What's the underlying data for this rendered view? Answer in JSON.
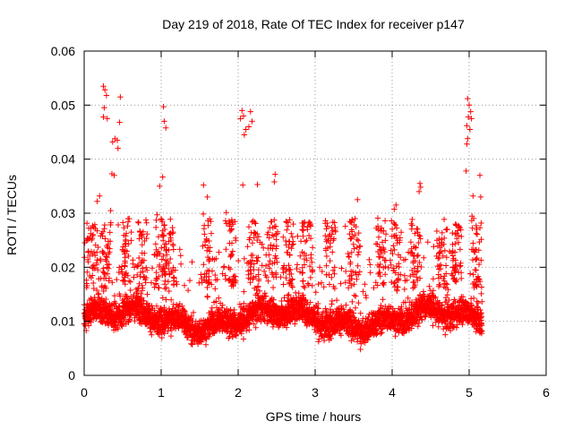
{
  "chart_data": {
    "type": "scatter",
    "title": "Day 219 of 2018, Rate Of TEC Index for receiver p147",
    "xlabel": "GPS time / hours",
    "ylabel": "ROTI / TECUs",
    "xlim": [
      0,
      6
    ],
    "ylim": [
      0,
      0.06
    ],
    "grid": true,
    "marker": "+",
    "color": "#ff0000",
    "xticks": [
      0,
      1,
      2,
      3,
      4,
      5,
      6
    ],
    "xtick_labels": [
      "0",
      "1",
      "2",
      "3",
      "4",
      "5",
      "6"
    ],
    "yticks": [
      0,
      0.01,
      0.02,
      0.03,
      0.04,
      0.05,
      0.06
    ],
    "ytick_labels": [
      "0",
      "0.01",
      "0.02",
      "0.03",
      "0.04",
      "0.05",
      "0.06"
    ],
    "series": [
      {
        "name": "ROTI",
        "x_range": [
          0.0,
          5.17
        ],
        "baseline_y_range": [
          0.004,
          0.018
        ],
        "notable_points": [
          {
            "x": 0.25,
            "y": 0.0535
          },
          {
            "x": 0.27,
            "y": 0.0528
          },
          {
            "x": 0.29,
            "y": 0.0518
          },
          {
            "x": 0.26,
            "y": 0.0495
          },
          {
            "x": 0.25,
            "y": 0.0478
          },
          {
            "x": 0.3,
            "y": 0.0475
          },
          {
            "x": 0.47,
            "y": 0.0515
          },
          {
            "x": 0.46,
            "y": 0.0468
          },
          {
            "x": 0.4,
            "y": 0.0438
          },
          {
            "x": 0.37,
            "y": 0.0432
          },
          {
            "x": 0.43,
            "y": 0.0435
          },
          {
            "x": 0.44,
            "y": 0.042
          },
          {
            "x": 0.36,
            "y": 0.0373
          },
          {
            "x": 0.39,
            "y": 0.037
          },
          {
            "x": 1.03,
            "y": 0.0497
          },
          {
            "x": 1.04,
            "y": 0.047
          },
          {
            "x": 1.06,
            "y": 0.0458
          },
          {
            "x": 1.02,
            "y": 0.0367
          },
          {
            "x": 0.98,
            "y": 0.035
          },
          {
            "x": 2.05,
            "y": 0.049
          },
          {
            "x": 2.07,
            "y": 0.048
          },
          {
            "x": 2.03,
            "y": 0.0475
          },
          {
            "x": 2.1,
            "y": 0.0455
          },
          {
            "x": 2.16,
            "y": 0.0488
          },
          {
            "x": 2.18,
            "y": 0.047
          },
          {
            "x": 2.14,
            "y": 0.046
          },
          {
            "x": 2.08,
            "y": 0.0445
          },
          {
            "x": 2.06,
            "y": 0.0352
          },
          {
            "x": 2.48,
            "y": 0.0372
          },
          {
            "x": 2.47,
            "y": 0.0358
          },
          {
            "x": 2.25,
            "y": 0.0353
          },
          {
            "x": 4.36,
            "y": 0.0355
          },
          {
            "x": 4.37,
            "y": 0.0348
          },
          {
            "x": 4.35,
            "y": 0.034
          },
          {
            "x": 4.05,
            "y": 0.0315
          },
          {
            "x": 3.55,
            "y": 0.0325
          },
          {
            "x": 4.98,
            "y": 0.0512
          },
          {
            "x": 5.0,
            "y": 0.05
          },
          {
            "x": 5.02,
            "y": 0.0488
          },
          {
            "x": 4.99,
            "y": 0.0478
          },
          {
            "x": 5.03,
            "y": 0.0475
          },
          {
            "x": 4.97,
            "y": 0.0462
          },
          {
            "x": 5.01,
            "y": 0.0455
          },
          {
            "x": 4.98,
            "y": 0.0438
          },
          {
            "x": 4.97,
            "y": 0.0428
          },
          {
            "x": 4.96,
            "y": 0.0378
          },
          {
            "x": 5.14,
            "y": 0.037
          },
          {
            "x": 5.05,
            "y": 0.0332
          },
          {
            "x": 5.15,
            "y": 0.033
          },
          {
            "x": 1.55,
            "y": 0.0352
          },
          {
            "x": 1.6,
            "y": 0.033
          },
          {
            "x": 0.2,
            "y": 0.0332
          },
          {
            "x": 0.17,
            "y": 0.0322
          }
        ]
      }
    ]
  }
}
